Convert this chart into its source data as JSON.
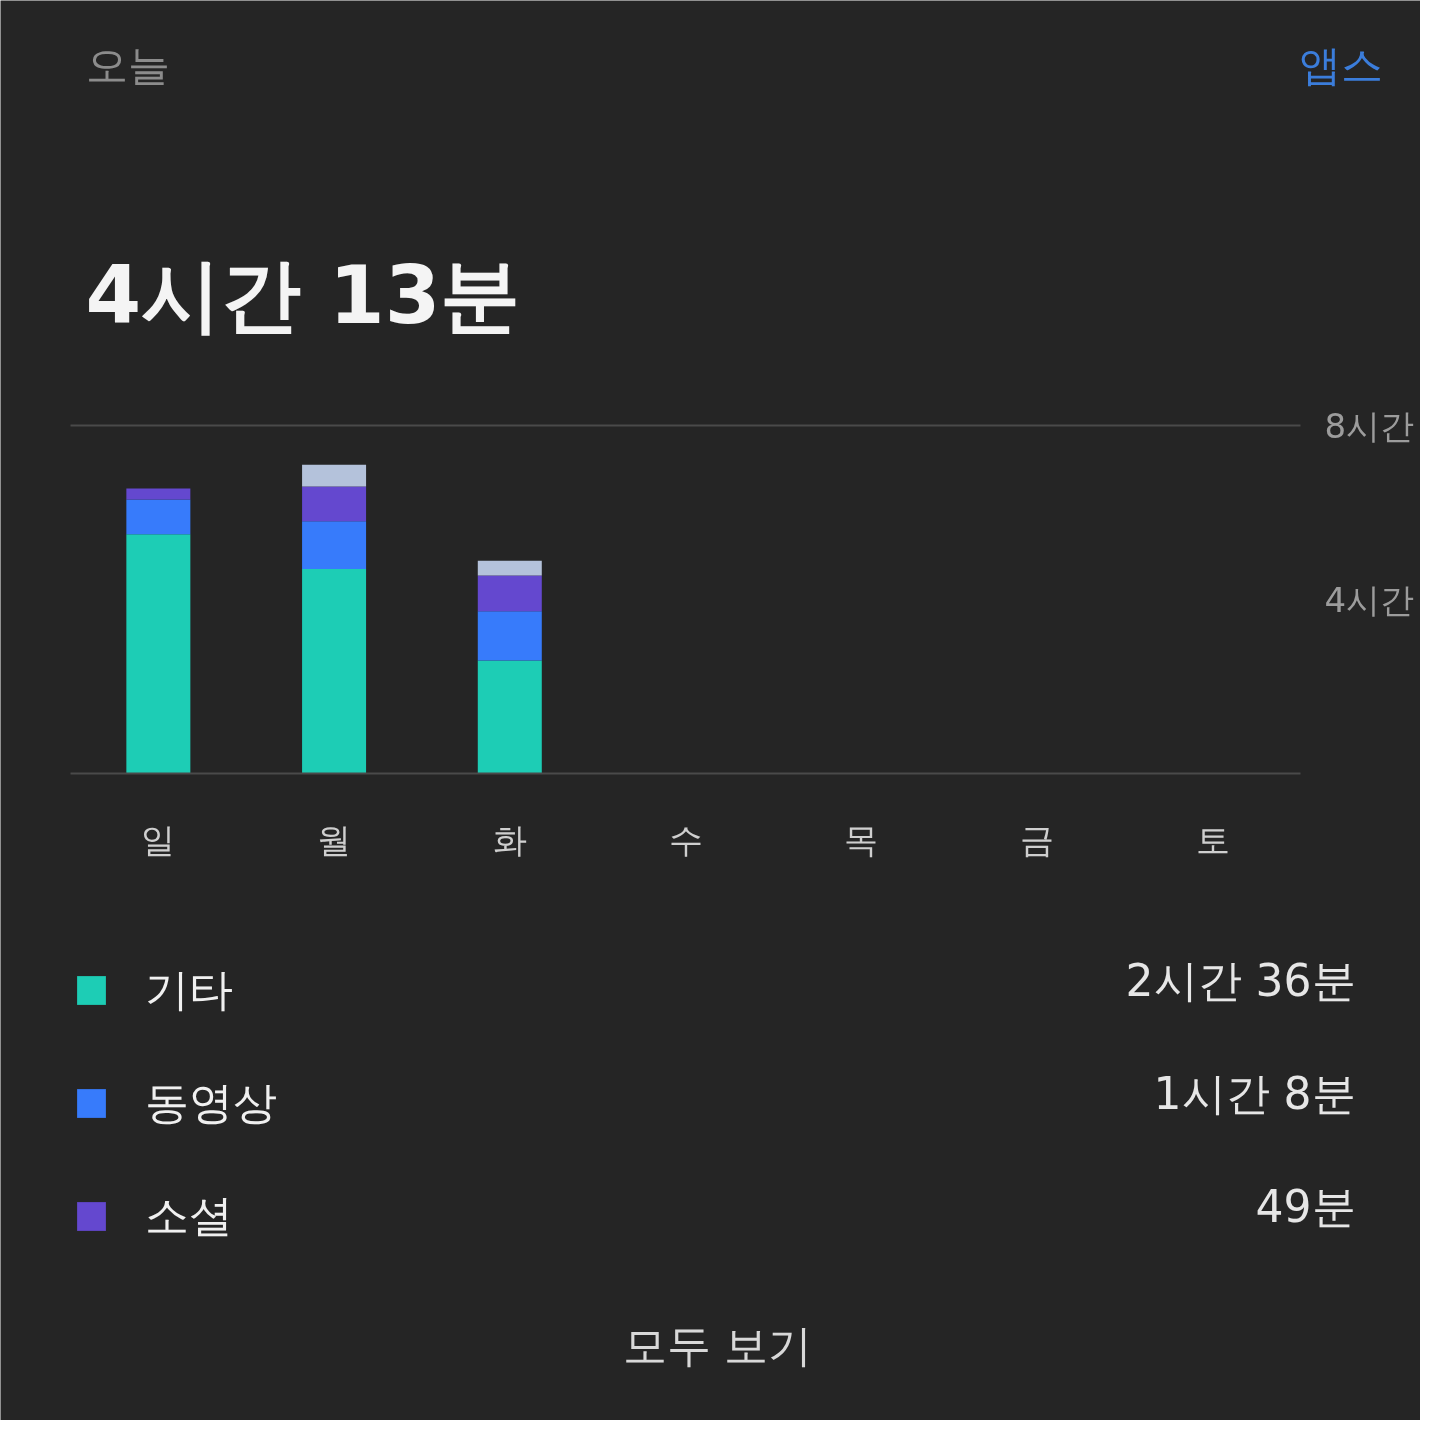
{
  "chart_data": {
    "type": "bar",
    "title": "4시간 13분",
    "categories": [
      "일",
      "월",
      "화",
      "수",
      "목",
      "금",
      "토"
    ],
    "stacked": true,
    "series": [
      {
        "name": "기타",
        "color": "#1dcdb5",
        "values": [
          5.5,
          4.7,
          2.6,
          null,
          null,
          null,
          null
        ]
      },
      {
        "name": "동영상",
        "color": "#377bfb",
        "values": [
          0.8,
          1.1,
          1.13,
          null,
          null,
          null,
          null
        ]
      },
      {
        "name": "소셜",
        "color": "#6448cf",
        "values": [
          0.25,
          0.8,
          0.82,
          null,
          null,
          null,
          null
        ]
      },
      {
        "color": "#b4c2db",
        "values": [
          null,
          0.5,
          0.34,
          null,
          null,
          null,
          null
        ]
      }
    ],
    "ylim": [
      0,
      8
    ],
    "yticks": [
      {
        "value": 4,
        "label": "4시간"
      },
      {
        "value": 8,
        "label": "8시간"
      }
    ],
    "legend": "bottom",
    "annotations": [
      "오늘",
      "앱스",
      "2시간 36분",
      "1시간 8분",
      "49분",
      "모두 보기"
    ]
  }
}
